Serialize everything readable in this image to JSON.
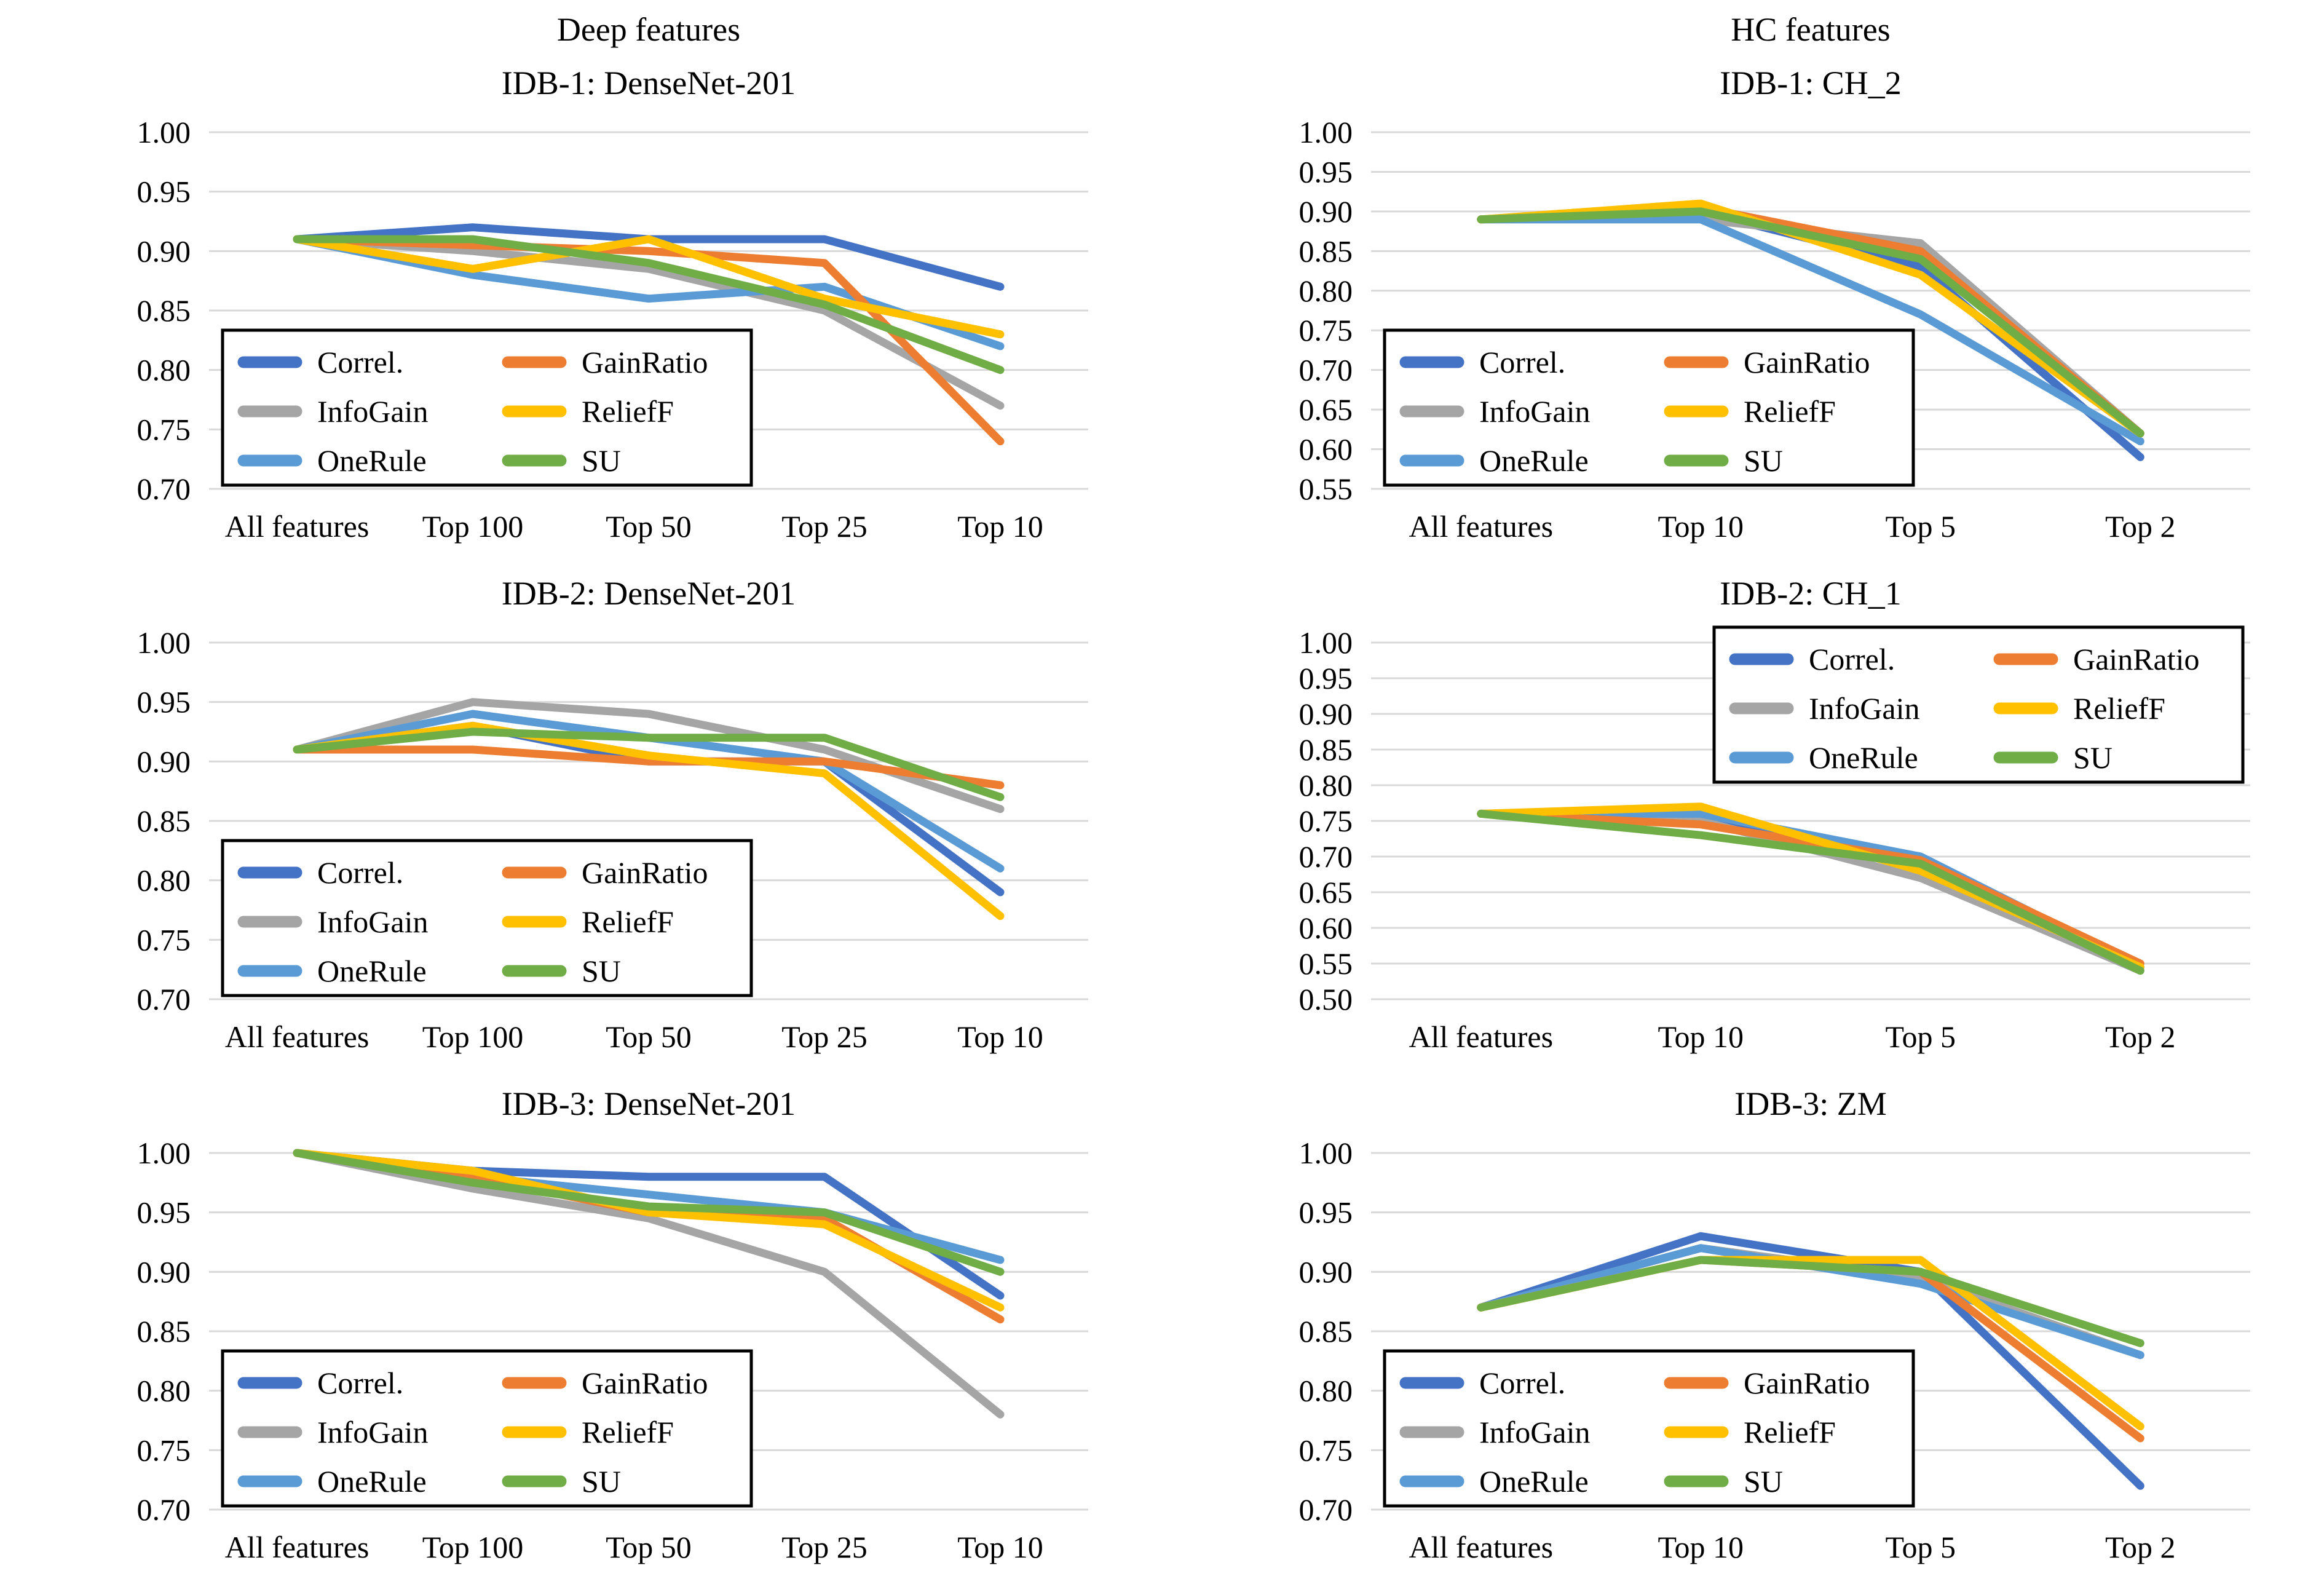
{
  "headers": {
    "left": "Deep features",
    "right": "HC features"
  },
  "palette": {
    "correl": "#4472C4",
    "infogain": "#A5A5A5",
    "onerule": "#5B9BD5",
    "gainratio": "#ED7D31",
    "relieff": "#FFC000",
    "su": "#70AD47"
  },
  "grid_color": "#D9D9D9",
  "legend_border_color": "#000000",
  "chart_data": [
    {
      "id": "idb1-deep",
      "type": "line",
      "title": "IDB-1: DenseNet-201",
      "column": "Deep features",
      "categories": [
        "All features",
        "Top 100",
        "Top 50",
        "Top 25",
        "Top 10"
      ],
      "ylim": [
        0.7,
        1.0
      ],
      "yticks": [
        "1.00",
        "0.95",
        "0.90",
        "0.85",
        "0.80",
        "0.75",
        "0.70"
      ],
      "grid": true,
      "legend_position": "bottom-left",
      "series": [
        {
          "name": "Correl.",
          "color": "#4472C4",
          "values": [
            0.91,
            0.92,
            0.91,
            0.91,
            0.87
          ]
        },
        {
          "name": "InfoGain",
          "color": "#A5A5A5",
          "values": [
            0.91,
            0.9,
            0.885,
            0.85,
            0.77
          ]
        },
        {
          "name": "OneRule",
          "color": "#5B9BD5",
          "values": [
            0.91,
            0.88,
            0.86,
            0.87,
            0.82
          ]
        },
        {
          "name": "GainRatio",
          "color": "#ED7D31",
          "values": [
            0.91,
            0.905,
            0.9,
            0.89,
            0.74
          ]
        },
        {
          "name": "ReliefF",
          "color": "#FFC000",
          "values": [
            0.91,
            0.885,
            0.91,
            0.86,
            0.83
          ]
        },
        {
          "name": "SU",
          "color": "#70AD47",
          "values": [
            0.91,
            0.91,
            0.89,
            0.855,
            0.8
          ]
        }
      ]
    },
    {
      "id": "idb1-hc",
      "type": "line",
      "title": "IDB-1: CH_2",
      "column": "HC features",
      "categories": [
        "All features",
        "Top 10",
        "Top 5",
        "Top 2"
      ],
      "ylim": [
        0.55,
        1.0
      ],
      "yticks": [
        "1.00",
        "0.95",
        "0.90",
        "0.85",
        "0.80",
        "0.75",
        "0.70",
        "0.65",
        "0.60",
        "0.55"
      ],
      "grid": true,
      "legend_position": "bottom-left",
      "series": [
        {
          "name": "Correl.",
          "color": "#4472C4",
          "values": [
            0.89,
            0.9,
            0.83,
            0.59
          ]
        },
        {
          "name": "InfoGain",
          "color": "#A5A5A5",
          "values": [
            0.89,
            0.89,
            0.86,
            0.62
          ]
        },
        {
          "name": "OneRule",
          "color": "#5B9BD5",
          "values": [
            0.89,
            0.89,
            0.77,
            0.61
          ]
        },
        {
          "name": "GainRatio",
          "color": "#ED7D31",
          "values": [
            0.89,
            0.905,
            0.85,
            0.62
          ]
        },
        {
          "name": "ReliefF",
          "color": "#FFC000",
          "values": [
            0.89,
            0.91,
            0.82,
            0.62
          ]
        },
        {
          "name": "SU",
          "color": "#70AD47",
          "values": [
            0.89,
            0.9,
            0.84,
            0.62
          ]
        }
      ]
    },
    {
      "id": "idb2-deep",
      "type": "line",
      "title": "IDB-2: DenseNet-201",
      "column": "Deep features",
      "categories": [
        "All features",
        "Top 100",
        "Top 50",
        "Top 25",
        "Top 10"
      ],
      "ylim": [
        0.7,
        1.0
      ],
      "yticks": [
        "1.00",
        "0.95",
        "0.90",
        "0.85",
        "0.80",
        "0.75",
        "0.70"
      ],
      "grid": true,
      "legend_position": "bottom-left",
      "series": [
        {
          "name": "Correl.",
          "color": "#4472C4",
          "values": [
            0.91,
            0.93,
            0.9,
            0.9,
            0.79
          ]
        },
        {
          "name": "InfoGain",
          "color": "#A5A5A5",
          "values": [
            0.91,
            0.95,
            0.94,
            0.91,
            0.86
          ]
        },
        {
          "name": "OneRule",
          "color": "#5B9BD5",
          "values": [
            0.91,
            0.94,
            0.92,
            0.9,
            0.81
          ]
        },
        {
          "name": "GainRatio",
          "color": "#ED7D31",
          "values": [
            0.91,
            0.91,
            0.9,
            0.9,
            0.88
          ]
        },
        {
          "name": "ReliefF",
          "color": "#FFC000",
          "values": [
            0.91,
            0.93,
            0.905,
            0.89,
            0.77
          ]
        },
        {
          "name": "SU",
          "color": "#70AD47",
          "values": [
            0.91,
            0.925,
            0.92,
            0.92,
            0.87
          ]
        }
      ]
    },
    {
      "id": "idb2-hc",
      "type": "line",
      "title": "IDB-2: CH_1",
      "column": "HC features",
      "categories": [
        "All features",
        "Top 10",
        "Top 5",
        "Top 2"
      ],
      "ylim": [
        0.5,
        1.0
      ],
      "yticks": [
        "1.00",
        "0.95",
        "0.90",
        "0.85",
        "0.80",
        "0.75",
        "0.70",
        "0.65",
        "0.60",
        "0.55",
        "0.50"
      ],
      "grid": true,
      "legend_position": "top-right",
      "series": [
        {
          "name": "Correl.",
          "color": "#4472C4",
          "values": [
            0.76,
            0.755,
            0.7,
            0.545
          ]
        },
        {
          "name": "InfoGain",
          "color": "#A5A5A5",
          "values": [
            0.76,
            0.75,
            0.67,
            0.54
          ]
        },
        {
          "name": "OneRule",
          "color": "#5B9BD5",
          "values": [
            0.76,
            0.76,
            0.7,
            0.545
          ]
        },
        {
          "name": "GainRatio",
          "color": "#ED7D31",
          "values": [
            0.76,
            0.745,
            0.695,
            0.55
          ]
        },
        {
          "name": "ReliefF",
          "color": "#FFC000",
          "values": [
            0.76,
            0.77,
            0.68,
            0.545
          ]
        },
        {
          "name": "SU",
          "color": "#70AD47",
          "values": [
            0.76,
            0.73,
            0.69,
            0.54
          ]
        }
      ]
    },
    {
      "id": "idb3-deep",
      "type": "line",
      "title": "IDB-3: DenseNet-201",
      "column": "Deep features",
      "categories": [
        "All features",
        "Top 100",
        "Top 50",
        "Top 25",
        "Top 10"
      ],
      "ylim": [
        0.7,
        1.0
      ],
      "yticks": [
        "1.00",
        "0.95",
        "0.90",
        "0.85",
        "0.80",
        "0.75",
        "0.70"
      ],
      "grid": true,
      "legend_position": "bottom-left",
      "series": [
        {
          "name": "Correl.",
          "color": "#4472C4",
          "values": [
            1.0,
            0.985,
            0.98,
            0.98,
            0.88
          ]
        },
        {
          "name": "InfoGain",
          "color": "#A5A5A5",
          "values": [
            1.0,
            0.97,
            0.945,
            0.9,
            0.78
          ]
        },
        {
          "name": "OneRule",
          "color": "#5B9BD5",
          "values": [
            1.0,
            0.98,
            0.965,
            0.95,
            0.91
          ]
        },
        {
          "name": "GainRatio",
          "color": "#ED7D31",
          "values": [
            1.0,
            0.98,
            0.95,
            0.945,
            0.86
          ]
        },
        {
          "name": "ReliefF",
          "color": "#FFC000",
          "values": [
            1.0,
            0.985,
            0.95,
            0.94,
            0.87
          ]
        },
        {
          "name": "SU",
          "color": "#70AD47",
          "values": [
            1.0,
            0.975,
            0.955,
            0.95,
            0.9
          ]
        }
      ]
    },
    {
      "id": "idb3-hc",
      "type": "line",
      "title": "IDB-3: ZM",
      "column": "HC features",
      "categories": [
        "All features",
        "Top 10",
        "Top 5",
        "Top 2"
      ],
      "ylim": [
        0.7,
        1.0
      ],
      "yticks": [
        "1.00",
        "0.95",
        "0.90",
        "0.85",
        "0.80",
        "0.75",
        "0.70"
      ],
      "grid": true,
      "legend_position": "bottom-left",
      "series": [
        {
          "name": "Correl.",
          "color": "#4472C4",
          "values": [
            0.87,
            0.93,
            0.9,
            0.72
          ]
        },
        {
          "name": "InfoGain",
          "color": "#A5A5A5",
          "values": [
            0.87,
            0.92,
            0.895,
            0.83
          ]
        },
        {
          "name": "OneRule",
          "color": "#5B9BD5",
          "values": [
            0.87,
            0.92,
            0.89,
            0.83
          ]
        },
        {
          "name": "GainRatio",
          "color": "#ED7D31",
          "values": [
            0.87,
            0.91,
            0.9,
            0.76
          ]
        },
        {
          "name": "ReliefF",
          "color": "#FFC000",
          "values": [
            0.87,
            0.91,
            0.91,
            0.77
          ]
        },
        {
          "name": "SU",
          "color": "#70AD47",
          "values": [
            0.87,
            0.91,
            0.9,
            0.84
          ]
        }
      ]
    }
  ]
}
